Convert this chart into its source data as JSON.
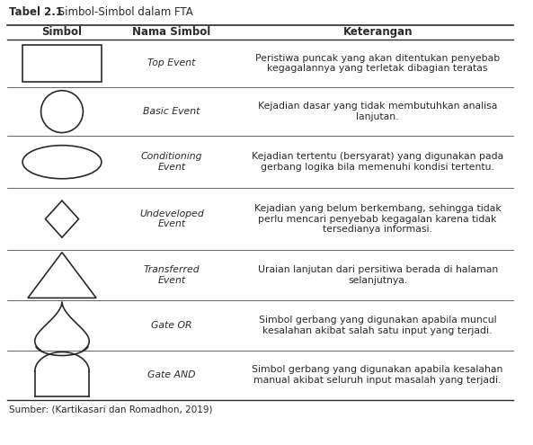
{
  "title_bold": "Tabel 2.1",
  "title_rest": " Simbol-Simbol dalam FTA",
  "col_headers": [
    "Simbol",
    "Nama Simbol",
    "Keterangan"
  ],
  "rows": [
    {
      "name": "Top Event",
      "desc": "Peristiwa puncak yang akan ditentukan penyebab\nkegagalannya yang terletak dibagian teratas"
    },
    {
      "name": "Basic Event",
      "desc": "Kejadian dasar yang tidak membutuhkan analisa\nlanjutan."
    },
    {
      "name": "Conditioning\nEvent",
      "desc": "Kejadian tertentu (bersyarat) yang digunakan pada\ngerbang logika bila memenuhi kondisi tertentu."
    },
    {
      "name": "Undeveloped\nEvent",
      "desc": "Kejadian yang belum berkembang, sehingga tidak\nperlu mencari penyebab kegagalan karena tidak\ntersedianya informasi."
    },
    {
      "name": "Transferred\nEvent",
      "desc": "Uraian lanjutan dari persitiwa berada di halaman\nselanjutnya."
    },
    {
      "name": "Gate OR",
      "desc": "Simbol gerbang yang digunakan apabila muncul\nkesalahan akibat salah satu input yang terjadi."
    },
    {
      "name": "Gate AND",
      "desc": "Simbol gerbang yang digunakan apabila kesalahan\nmanual akibat seluruh input masalah yang terjadi."
    }
  ],
  "source": "Sumber: (Kartikasari dan Romadhon, 2019)",
  "bg_color": "#ffffff",
  "text_color": "#2a2a2a",
  "line_color": "#2a2a2a",
  "title_fontsize": 8.5,
  "header_fontsize": 8.5,
  "body_fontsize": 7.8,
  "source_fontsize": 7.5
}
